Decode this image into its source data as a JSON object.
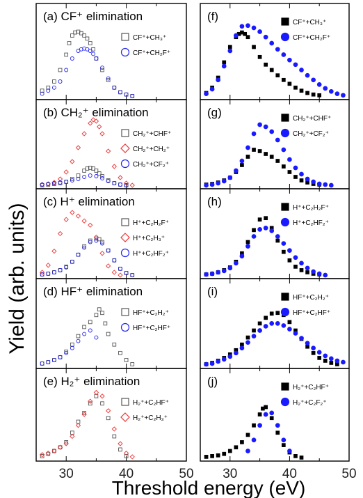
{
  "figure": {
    "ylabel": "Yield (arb. units)",
    "xlabel": "Threshold energy (eV)",
    "x_ticks": [
      "30",
      "40",
      "50"
    ]
  },
  "chart_data": [
    {
      "type": "scatter",
      "panel": "(a)",
      "title": "(a) CF⁺ elimination",
      "xlim": [
        25,
        50
      ],
      "legend_position": "right",
      "series": [
        {
          "name": "CF⁺+CH₃⁺",
          "marker": "square-open",
          "color": "#555555",
          "x": [
            26,
            27,
            28,
            29,
            30,
            30.5,
            31,
            31.5,
            32,
            32.5,
            33,
            33.5,
            34,
            34.5,
            35,
            36,
            37,
            38,
            39,
            40,
            41
          ],
          "y": [
            0.08,
            0.12,
            0.2,
            0.35,
            0.55,
            0.7,
            0.8,
            0.84,
            0.85,
            0.83,
            0.8,
            0.76,
            0.7,
            0.62,
            0.5,
            0.35,
            0.22,
            0.12,
            0.06,
            0.03,
            0.01
          ]
        },
        {
          "name": "CF⁺+CH₂F⁺",
          "marker": "circle-open",
          "color": "#2222ee",
          "x": [
            26,
            27,
            28,
            29,
            30,
            31,
            32,
            32.5,
            33,
            33.5,
            34,
            34.5,
            35,
            36,
            37,
            38,
            39,
            40,
            41
          ],
          "y": [
            0.04,
            0.08,
            0.12,
            0.2,
            0.35,
            0.5,
            0.6,
            0.62,
            0.63,
            0.62,
            0.6,
            0.56,
            0.5,
            0.38,
            0.24,
            0.12,
            0.06,
            0.03,
            0.01
          ]
        }
      ]
    },
    {
      "type": "scatter",
      "panel": "(b)",
      "title": "(b) CH₂⁺ elimination",
      "xlim": [
        25,
        50
      ],
      "legend_position": "right",
      "series": [
        {
          "name": "CH₂⁺+CHF⁺",
          "marker": "square-open",
          "color": "#555555",
          "x": [
            26,
            27,
            28,
            29,
            30,
            31,
            32,
            33,
            33.5,
            34,
            34.5,
            35,
            35.5,
            36,
            37,
            38,
            39,
            40
          ],
          "y": [
            0.01,
            0.02,
            0.03,
            0.04,
            0.06,
            0.1,
            0.15,
            0.22,
            0.25,
            0.26,
            0.25,
            0.22,
            0.18,
            0.14,
            0.08,
            0.04,
            0.02,
            0.01
          ]
        },
        {
          "name": "CH₂⁺+CH₂⁺",
          "marker": "diamond-open",
          "color": "#ee3333",
          "x": [
            26,
            27,
            28,
            29,
            30,
            31,
            32,
            33,
            34,
            34.5,
            35,
            35.5,
            36,
            37,
            38,
            39,
            40,
            41
          ],
          "y": [
            0.02,
            0.03,
            0.05,
            0.1,
            0.2,
            0.35,
            0.55,
            0.75,
            0.9,
            0.95,
            0.93,
            0.85,
            0.75,
            0.5,
            0.28,
            0.12,
            0.04,
            0.01
          ]
        },
        {
          "name": "CH₂⁺+CF₂⁺",
          "marker": "circle-open",
          "color": "#2222ee",
          "x": [
            26,
            27,
            28,
            29,
            30,
            31,
            32,
            33,
            34,
            35,
            36,
            37,
            38,
            39,
            40
          ],
          "y": [
            0.02,
            0.03,
            0.04,
            0.05,
            0.06,
            0.08,
            0.1,
            0.13,
            0.15,
            0.14,
            0.11,
            0.07,
            0.04,
            0.02,
            0.01
          ]
        }
      ]
    },
    {
      "type": "scatter",
      "panel": "(c)",
      "title": "(c) H⁺ elimination",
      "xlim": [
        25,
        50
      ],
      "legend_position": "right",
      "series": [
        {
          "name": "H⁺+C₂H₂F⁺",
          "marker": "square-open",
          "color": "#555555",
          "x": [
            26,
            27,
            28,
            29,
            30,
            31,
            32,
            33,
            34,
            35,
            35.5,
            36,
            37,
            38,
            39,
            40,
            41
          ],
          "y": [
            0.02,
            0.03,
            0.05,
            0.08,
            0.13,
            0.2,
            0.3,
            0.42,
            0.5,
            0.53,
            0.52,
            0.48,
            0.36,
            0.22,
            0.1,
            0.04,
            0.01
          ]
        },
        {
          "name": "H⁺+C₂H₃⁺",
          "marker": "diamond-open",
          "color": "#ee3333",
          "x": [
            26,
            27,
            28,
            29,
            30,
            31,
            32,
            33,
            34,
            35,
            36,
            37,
            38,
            39
          ],
          "y": [
            0.05,
            0.15,
            0.35,
            0.6,
            0.8,
            0.9,
            0.85,
            0.78,
            0.72,
            0.55,
            0.32,
            0.14,
            0.05,
            0.01
          ]
        },
        {
          "name": "H⁺+C₂HF₂⁺",
          "marker": "circle-open",
          "color": "#2222ee",
          "x": [
            26,
            27,
            28,
            29,
            30,
            31,
            32,
            33,
            34,
            35,
            36,
            37,
            38,
            39,
            40,
            41
          ],
          "y": [
            0.02,
            0.03,
            0.05,
            0.08,
            0.12,
            0.2,
            0.3,
            0.4,
            0.48,
            0.5,
            0.46,
            0.36,
            0.22,
            0.1,
            0.04,
            0.01
          ]
        }
      ]
    },
    {
      "type": "scatter",
      "panel": "(d)",
      "title": "(d) HF⁺ elimination",
      "xlim": [
        25,
        50
      ],
      "legend_position": "right",
      "series": [
        {
          "name": "HF⁺+C₂H₂⁺",
          "marker": "square-open",
          "color": "#555555",
          "x": [
            26,
            27,
            28,
            29,
            30,
            31,
            32,
            33,
            34,
            35,
            35.5,
            36,
            36.5,
            37,
            38,
            39,
            40,
            41
          ],
          "y": [
            0.03,
            0.05,
            0.08,
            0.12,
            0.2,
            0.3,
            0.42,
            0.55,
            0.62,
            0.72,
            0.8,
            0.75,
            0.6,
            0.45,
            0.3,
            0.18,
            0.08,
            0.02
          ]
        },
        {
          "name": "HF⁺+C₂HF⁺",
          "marker": "circle-open",
          "color": "#2222ee",
          "x": [
            26,
            27,
            28,
            29,
            30,
            31,
            32,
            33,
            34,
            35
          ],
          "y": [
            0.03,
            0.05,
            0.08,
            0.12,
            0.18,
            0.25,
            0.35,
            0.45,
            0.5,
            0.4
          ]
        }
      ]
    },
    {
      "type": "scatter",
      "panel": "(e)",
      "title": "(e) H₂⁺ elimination",
      "xlim": [
        25,
        50
      ],
      "legend_position": "right",
      "series": [
        {
          "name": "H₂⁺+C₂HF⁺",
          "marker": "square-open",
          "color": "#555555",
          "x": [
            26,
            27,
            28,
            29,
            30,
            31,
            32,
            33,
            34,
            35,
            36,
            37,
            38,
            39,
            40
          ],
          "y": [
            0.03,
            0.06,
            0.1,
            0.15,
            0.22,
            0.35,
            0.5,
            0.62,
            0.75,
            0.85,
            0.75,
            0.55,
            0.3,
            0.12,
            0.03
          ]
        },
        {
          "name": "H₂⁺+C₂H₃⁺",
          "marker": "diamond-open",
          "color": "#ee3333",
          "x": [
            26,
            27,
            28,
            29,
            30,
            31,
            32,
            33,
            34,
            35,
            36,
            37,
            38,
            39,
            40,
            41
          ],
          "y": [
            0.05,
            0.07,
            0.1,
            0.15,
            0.2,
            0.3,
            0.45,
            0.6,
            0.78,
            0.9,
            0.85,
            0.65,
            0.4,
            0.2,
            0.07,
            0.02
          ]
        }
      ]
    },
    {
      "type": "scatter",
      "panel": "(f)",
      "title": "(f)",
      "xlim": [
        25,
        50
      ],
      "legend_position": "top-right",
      "series": [
        {
          "name": "CF⁺+CH₃⁺",
          "marker": "square-filled",
          "color": "#000000",
          "x": [
            26,
            27,
            28,
            29,
            30,
            31,
            31.5,
            32,
            32.5,
            33,
            34,
            35,
            36,
            37,
            38,
            39,
            40,
            41,
            42,
            43,
            44,
            45
          ],
          "y": [
            0.05,
            0.12,
            0.25,
            0.45,
            0.65,
            0.78,
            0.82,
            0.84,
            0.82,
            0.78,
            0.65,
            0.52,
            0.42,
            0.35,
            0.28,
            0.22,
            0.17,
            0.12,
            0.08,
            0.05,
            0.03,
            0.02
          ]
        },
        {
          "name": "CF⁺+CH₂F⁺",
          "marker": "circle-filled",
          "color": "#1a1aff",
          "x": [
            26,
            27,
            28,
            29,
            30,
            31,
            32,
            33,
            34,
            35,
            36,
            37,
            38,
            39,
            40,
            41,
            42,
            43,
            44,
            45,
            46,
            47,
            48,
            49
          ],
          "y": [
            0.04,
            0.1,
            0.22,
            0.4,
            0.6,
            0.8,
            0.92,
            0.93,
            0.9,
            0.85,
            0.78,
            0.7,
            0.62,
            0.55,
            0.48,
            0.42,
            0.35,
            0.28,
            0.22,
            0.16,
            0.11,
            0.07,
            0.04,
            0.02
          ]
        }
      ]
    },
    {
      "type": "scatter",
      "panel": "(g)",
      "title": "(g)",
      "xlim": [
        25,
        50
      ],
      "legend_position": "top-right",
      "series": [
        {
          "name": "CH₂⁺+CHF⁺",
          "marker": "square-filled",
          "color": "#000000",
          "x": [
            26,
            27,
            28,
            29,
            30,
            31,
            32,
            33,
            34,
            35,
            36,
            37,
            38,
            39,
            40,
            41,
            42,
            43,
            44,
            45
          ],
          "y": [
            0.02,
            0.03,
            0.05,
            0.08,
            0.12,
            0.2,
            0.3,
            0.42,
            0.52,
            0.5,
            0.46,
            0.42,
            0.36,
            0.28,
            0.2,
            0.13,
            0.08,
            0.05,
            0.03,
            0.02
          ]
        },
        {
          "name": "CH₂⁺+CF₂⁺",
          "marker": "circle-filled",
          "color": "#1a1aff",
          "x": [
            26,
            27,
            28,
            29,
            30,
            31,
            32,
            33,
            34,
            35,
            36,
            37,
            38,
            39,
            40,
            41,
            42,
            43,
            44,
            45,
            46,
            47
          ],
          "y": [
            0.01,
            0.02,
            0.04,
            0.07,
            0.12,
            0.22,
            0.36,
            0.55,
            0.75,
            0.88,
            0.85,
            0.78,
            0.66,
            0.52,
            0.38,
            0.26,
            0.17,
            0.1,
            0.06,
            0.03,
            0.02,
            0.01
          ]
        }
      ]
    },
    {
      "type": "scatter",
      "panel": "(h)",
      "title": "(h)",
      "xlim": [
        25,
        50
      ],
      "legend_position": "top-right",
      "series": [
        {
          "name": "H⁺+C₂H₂F⁺",
          "marker": "square-filled",
          "color": "#000000",
          "x": [
            26,
            27,
            28,
            29,
            30,
            31,
            32,
            33,
            34,
            35,
            36,
            37,
            38,
            39,
            40,
            41,
            42,
            43,
            44,
            45
          ],
          "y": [
            0.02,
            0.03,
            0.05,
            0.08,
            0.12,
            0.2,
            0.32,
            0.48,
            0.65,
            0.8,
            0.82,
            0.68,
            0.5,
            0.34,
            0.22,
            0.13,
            0.08,
            0.05,
            0.03,
            0.02
          ]
        },
        {
          "name": "H⁺+C₂HF₂⁺",
          "marker": "circle-filled",
          "color": "#1a1aff",
          "x": [
            26,
            27,
            28,
            29,
            30,
            31,
            32,
            33,
            34,
            35,
            36,
            37,
            38,
            39,
            40,
            41,
            42,
            43,
            44,
            45,
            46
          ],
          "y": [
            0.02,
            0.03,
            0.05,
            0.07,
            0.11,
            0.18,
            0.28,
            0.42,
            0.56,
            0.66,
            0.68,
            0.64,
            0.56,
            0.46,
            0.36,
            0.26,
            0.18,
            0.11,
            0.06,
            0.03,
            0.01
          ]
        }
      ]
    },
    {
      "type": "scatter",
      "panel": "(i)",
      "title": "(i)",
      "xlim": [
        25,
        50
      ],
      "legend_position": "top-right",
      "series": [
        {
          "name": "HF⁺+C₂H₂⁺",
          "marker": "square-filled",
          "color": "#000000",
          "x": [
            26,
            27,
            28,
            29,
            30,
            31,
            32,
            33,
            34,
            35,
            36,
            37,
            38,
            39,
            40,
            41,
            42,
            43,
            44,
            45,
            46,
            47,
            48
          ],
          "y": [
            0.02,
            0.04,
            0.07,
            0.11,
            0.16,
            0.22,
            0.3,
            0.4,
            0.5,
            0.6,
            0.68,
            0.74,
            0.75,
            0.72,
            0.62,
            0.5,
            0.38,
            0.27,
            0.18,
            0.11,
            0.07,
            0.04,
            0.02
          ]
        },
        {
          "name": "HF⁺+C₂HF⁺",
          "marker": "circle-filled",
          "color": "#1a1aff",
          "x": [
            26,
            27,
            28,
            29,
            30,
            31,
            32,
            33,
            34,
            35,
            36,
            37,
            38,
            39,
            40,
            41,
            42,
            43,
            44,
            45,
            46,
            47,
            48,
            49
          ],
          "y": [
            0.02,
            0.03,
            0.06,
            0.09,
            0.13,
            0.18,
            0.25,
            0.33,
            0.42,
            0.5,
            0.56,
            0.6,
            0.6,
            0.57,
            0.52,
            0.46,
            0.39,
            0.32,
            0.25,
            0.19,
            0.14,
            0.1,
            0.07,
            0.05
          ]
        }
      ]
    },
    {
      "type": "scatter",
      "panel": "(j)",
      "title": "(j)",
      "xlim": [
        25,
        50
      ],
      "legend_position": "top-right",
      "series": [
        {
          "name": "H₂⁺+C₂HF⁺",
          "marker": "square-filled",
          "color": "#000000",
          "x": [
            26,
            27,
            28,
            29,
            30,
            31,
            32,
            33,
            34,
            35,
            35.5,
            36,
            37,
            38,
            39,
            40,
            41,
            42
          ],
          "y": [
            0.02,
            0.03,
            0.04,
            0.06,
            0.1,
            0.15,
            0.22,
            0.32,
            0.45,
            0.6,
            0.68,
            0.7,
            0.55,
            0.35,
            0.18,
            0.08,
            0.03,
            0.01
          ]
        },
        {
          "name": "H₂⁺+C₂F₂⁺",
          "marker": "circle-filled",
          "color": "#1a1aff",
          "x": [
            33,
            34,
            35,
            36,
            37,
            38,
            39,
            40
          ],
          "y": [
            0.1,
            0.25,
            0.45,
            0.6,
            0.62,
            0.45,
            0.25,
            0.1
          ]
        }
      ]
    }
  ]
}
